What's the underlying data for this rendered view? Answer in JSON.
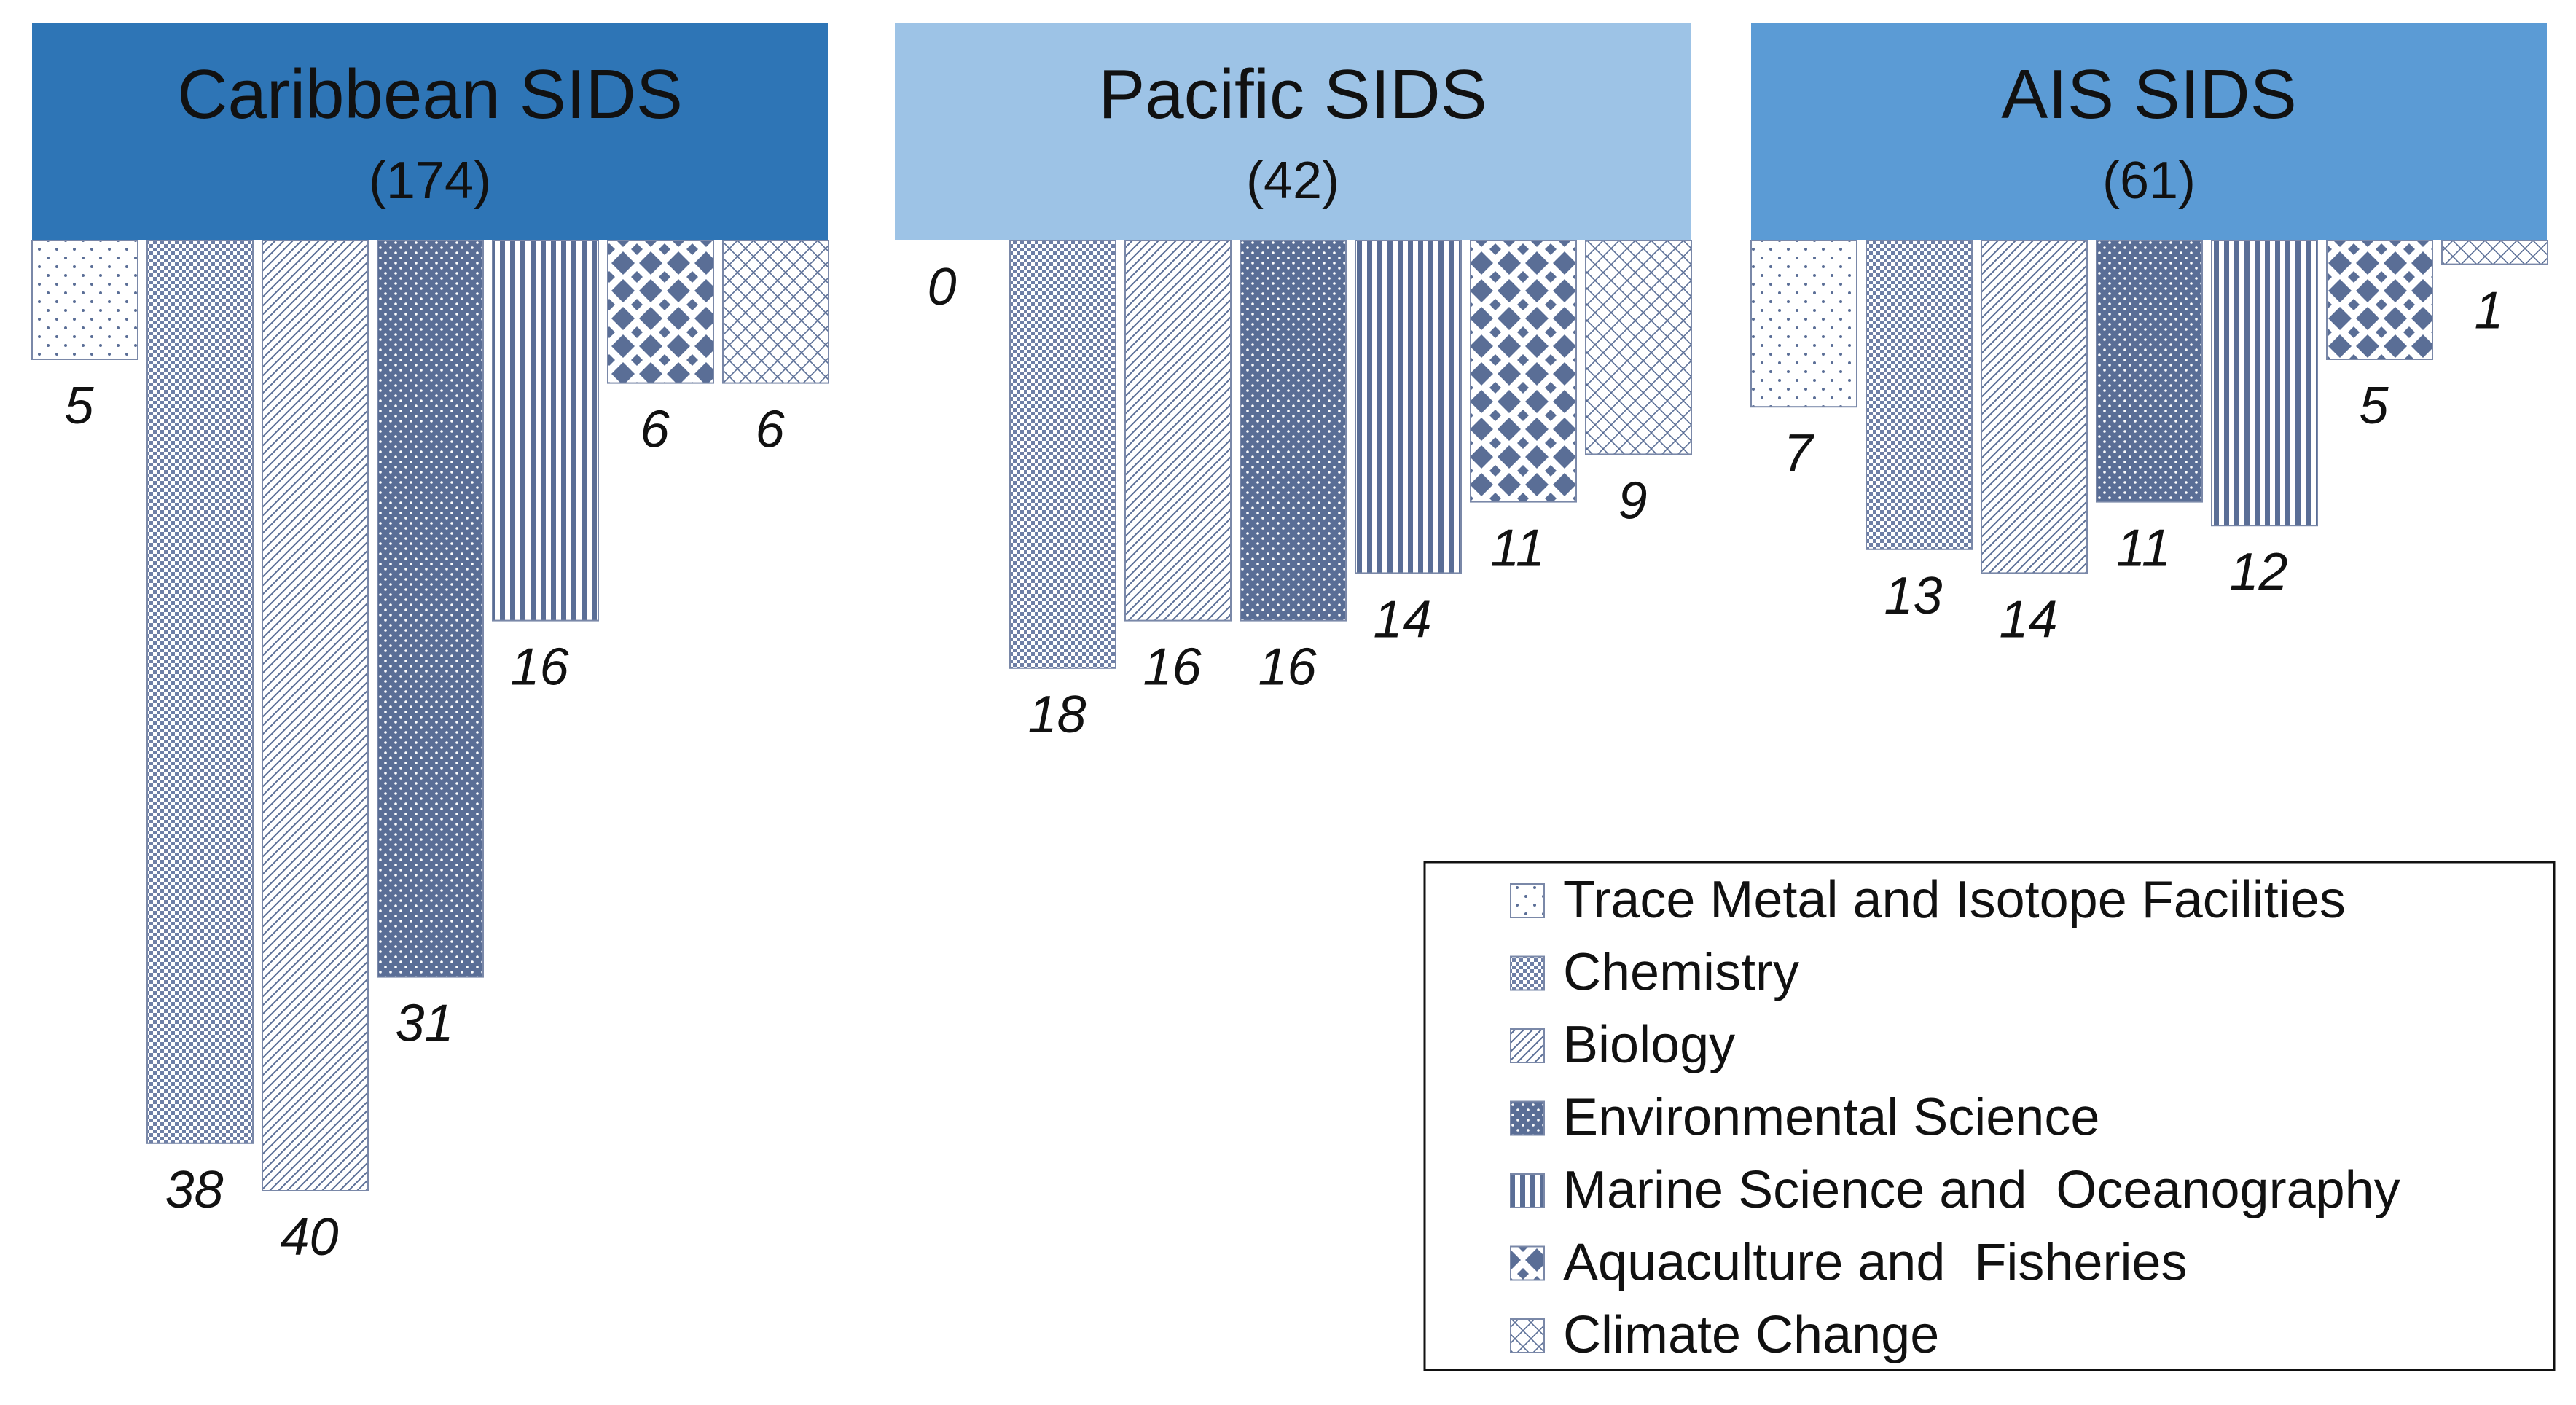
{
  "chart_data": {
    "type": "bar",
    "orientation": "downward",
    "panels": [
      {
        "title": "Caribbean SIDS",
        "count": "(174)",
        "header_color": "#2E75B6",
        "values": [
          5,
          38,
          40,
          31,
          16,
          6,
          6
        ]
      },
      {
        "title": "Pacific SIDS",
        "count": "(42)",
        "header_color": "#9DC3E6",
        "values": [
          0,
          18,
          16,
          16,
          14,
          11,
          9
        ]
      },
      {
        "title": "AIS SIDS",
        "count": "(61)",
        "header_color": "#5B9BD5",
        "values": [
          7,
          13,
          14,
          11,
          12,
          5,
          1
        ]
      }
    ],
    "series": [
      {
        "name": "Trace Metal and Isotope Facilities",
        "pattern": "dots-sparse"
      },
      {
        "name": "Chemistry",
        "pattern": "checker"
      },
      {
        "name": "Biology",
        "pattern": "diagonal"
      },
      {
        "name": "Environmental Science",
        "pattern": "dark-dots"
      },
      {
        "name": "Marine Science and  Oceanography",
        "pattern": "vertical-lines"
      },
      {
        "name": "Aquaculture and  Fisheries",
        "pattern": "diamonds"
      },
      {
        "name": "Climate Change",
        "pattern": "cross-hatch"
      }
    ],
    "legend_position": "bottom-right",
    "grid": false,
    "bar_color": "#5A6E96"
  }
}
